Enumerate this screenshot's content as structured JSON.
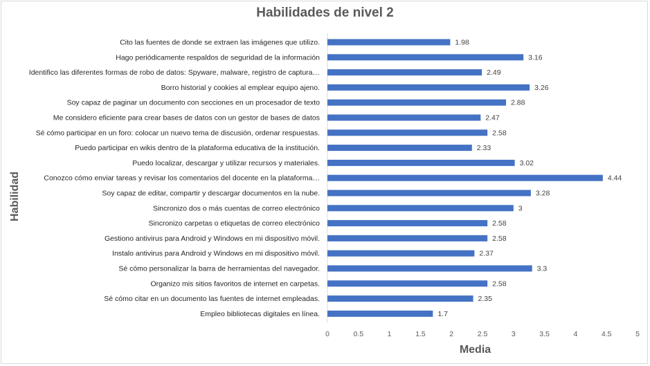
{
  "chart_data": {
    "type": "bar",
    "orientation": "horizontal",
    "title": "Habilidades de nivel 2",
    "xlabel": "Media",
    "ylabel": "Habilidad",
    "xlim": [
      0,
      5
    ],
    "xticks": [
      "0",
      "0.5",
      "1",
      "1.5",
      "2",
      "2.5",
      "3",
      "3.5",
      "4",
      "4.5",
      "5"
    ],
    "categories": [
      "Cito las fuentes de donde se extraen las imágenes que utilizo.",
      "Hago periódicamente respaldos de seguridad de la información",
      "Identifico las diferentes formas de robo de datos: Spyware, malware, registro de captura…",
      "Borro historial y cookies al emplear equipo ajeno.",
      "Soy capaz de paginar un documento con secciones en un procesador de texto",
      "Me considero eficiente para crear bases de datos con un gestor de bases de datos",
      "Sé cómo participar en un foro: colocar un nuevo tema de discusión, ordenar respuestas.",
      "Puedo participar en wikis dentro de la plataforma educativa de la institución.",
      "Puedo localizar, descargar y utilizar recursos y materiales.",
      "Conozco cómo enviar tareas y revisar los comentarios del docente en la plataforma…",
      "Soy capaz de editar, compartir y descargar documentos en la nube.",
      "Sincronizo dos o más cuentas de correo electrónico",
      "Sincronizo carpetas o etiquetas de correo electrónico",
      "Gestiono antivirus para Android y Windows en mi dispositivo móvil.",
      "Instalo antivirus para Android y Windows en mi dispositivo móvil.",
      "Sé cómo personalizar la barra de herramientas del navegador.",
      "Organizo mis sitios favoritos de internet en carpetas.",
      "Sé cómo citar en un documento las fuentes de internet empleadas.",
      "Empleo bibliotecas digitales en línea."
    ],
    "values": [
      1.98,
      3.16,
      2.49,
      3.26,
      2.88,
      2.47,
      2.58,
      2.33,
      3.02,
      4.44,
      3.28,
      3,
      2.58,
      2.58,
      2.37,
      3.3,
      2.58,
      2.35,
      1.7
    ],
    "value_labels": [
      "1.98",
      "3.16",
      "2.49",
      "3.26",
      "2.88",
      "2.47",
      "2.58",
      "2.33",
      "3.02",
      "4.44",
      "3.28",
      "3",
      "2.58",
      "2.58",
      "2.37",
      "3.3",
      "2.58",
      "2.35",
      "1.7"
    ],
    "bar_color": "#4472c4",
    "grid": false,
    "legend": "none"
  }
}
